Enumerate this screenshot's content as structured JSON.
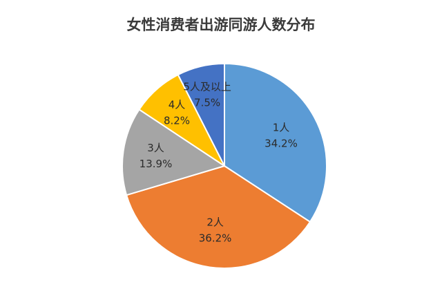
{
  "chart_data": {
    "type": "pie",
    "title": "女性消费者出游同游人数分布",
    "slices": [
      {
        "label": "1人",
        "value": 34.2,
        "value_text": "34.2%",
        "color": "#5B9BD5"
      },
      {
        "label": "2人",
        "value": 36.2,
        "value_text": "36.2%",
        "color": "#ED7D31"
      },
      {
        "label": "3人",
        "value": 13.9,
        "value_text": "13.9%",
        "color": "#A5A5A5"
      },
      {
        "label": "4人",
        "value": 8.2,
        "value_text": "8.2%",
        "color": "#FFC000"
      },
      {
        "label": "5人及以上",
        "value": 7.5,
        "value_text": "7.5%",
        "color": "#4472C4"
      }
    ],
    "start": "12 o'clock",
    "direction": "clockwise",
    "legend": "none"
  }
}
